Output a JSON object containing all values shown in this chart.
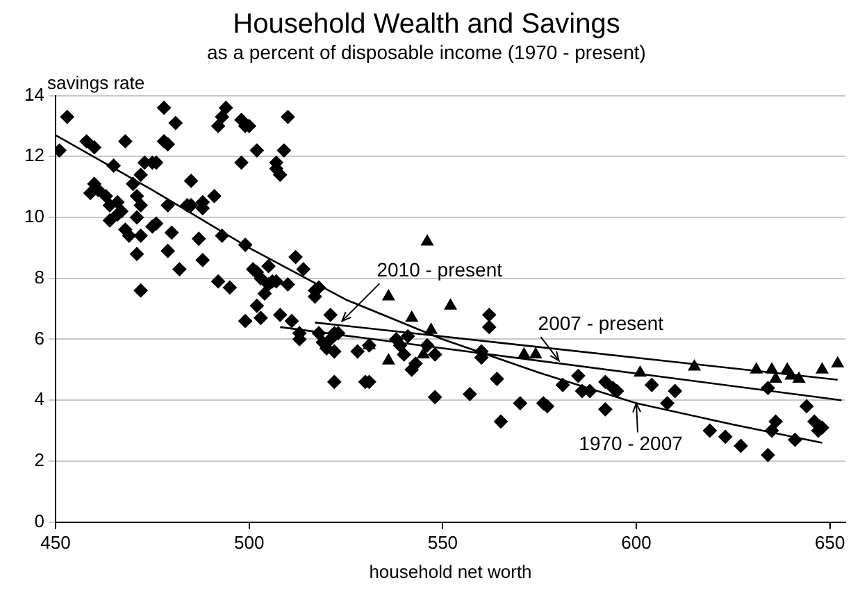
{
  "chart_data": {
    "type": "scatter",
    "title": "Household Wealth and Savings",
    "subtitle": "as a percent of disposable income (1970 - present)",
    "xlabel": "household net worth",
    "ylabel": "savings rate",
    "xlim": [
      450,
      654
    ],
    "xticks": [
      450,
      500,
      550,
      600,
      650
    ],
    "ylim": [
      0,
      14
    ],
    "yticks": [
      0,
      2,
      4,
      6,
      8,
      10,
      12,
      14
    ],
    "grid": "y",
    "legend": false,
    "series": [
      {
        "marker": "diamond",
        "color": "#000000",
        "x": [
          451,
          453,
          458,
          460,
          459,
          460,
          461,
          463,
          464,
          466,
          464,
          466,
          467,
          468,
          465,
          468,
          469,
          471,
          471,
          472,
          472,
          472,
          471,
          470,
          472,
          473,
          475,
          476,
          478,
          478,
          479,
          481,
          475,
          476,
          479,
          480,
          479,
          482,
          484,
          485,
          485,
          488,
          488,
          491,
          487,
          488,
          492,
          493,
          492,
          493,
          494,
          495,
          498,
          499,
          500,
          498,
          502,
          499,
          501,
          502,
          502,
          503,
          505,
          506,
          505,
          507,
          507,
          508,
          510,
          509,
          512,
          514,
          517,
          504,
          503,
          508,
          499,
          518,
          517,
          521,
          507,
          510,
          511,
          513,
          513,
          518,
          519,
          521,
          522,
          523,
          520,
          522,
          522,
          528,
          531,
          530,
          531,
          538,
          539,
          540,
          542,
          543,
          541,
          546,
          548,
          548,
          557,
          560,
          560,
          562,
          562,
          564,
          565,
          570,
          576,
          577,
          581,
          585,
          586,
          588,
          592,
          592,
          594,
          595,
          604,
          610,
          608,
          619,
          623,
          627,
          634,
          635,
          636,
          641,
          644,
          646,
          647,
          648,
          634
        ],
        "values": [
          12.2,
          13.3,
          12.5,
          12.3,
          10.8,
          11.1,
          10.9,
          10.7,
          10.4,
          10.5,
          9.9,
          10.1,
          10.2,
          12.5,
          11.7,
          9.6,
          9.4,
          10.0,
          8.8,
          7.6,
          9.4,
          10.4,
          10.7,
          11.1,
          11.4,
          11.8,
          11.8,
          11.8,
          13.6,
          12.5,
          12.4,
          13.1,
          9.7,
          9.8,
          10.4,
          9.5,
          8.9,
          8.3,
          10.4,
          10.4,
          11.2,
          10.5,
          10.3,
          10.7,
          9.3,
          8.6,
          7.9,
          9.4,
          13.0,
          13.3,
          13.6,
          7.7,
          13.2,
          13.0,
          13.0,
          11.8,
          12.2,
          9.1,
          8.3,
          8.2,
          7.1,
          8.0,
          8.4,
          7.9,
          7.8,
          11.8,
          11.6,
          11.4,
          13.3,
          12.2,
          8.7,
          8.3,
          7.6,
          7.5,
          6.7,
          6.8,
          6.6,
          7.7,
          7.4,
          6.8,
          7.9,
          7.8,
          6.6,
          6.2,
          6.0,
          6.2,
          5.9,
          6.0,
          6.2,
          6.2,
          5.7,
          5.6,
          4.6,
          5.6,
          5.8,
          4.6,
          4.6,
          6.0,
          5.8,
          5.5,
          5.0,
          5.2,
          6.1,
          5.8,
          5.5,
          4.1,
          4.2,
          5.4,
          5.6,
          6.8,
          6.4,
          4.7,
          3.3,
          3.9,
          3.9,
          3.8,
          4.5,
          4.8,
          4.3,
          4.3,
          3.7,
          4.6,
          4.4,
          4.3,
          4.5,
          4.3,
          3.9,
          3.0,
          2.8,
          2.5,
          2.2,
          3.0,
          3.3,
          2.7,
          3.8,
          3.3,
          3.0,
          3.1,
          4.4
        ]
      },
      {
        "marker": "triangle",
        "color": "#000000",
        "x": [
          546,
          536,
          552,
          531,
          536,
          542,
          545,
          547,
          571,
          574,
          601,
          615,
          631,
          635,
          636,
          639,
          640,
          642,
          648,
          652
        ],
        "values": [
          9.2,
          7.4,
          7.1,
          5.8,
          5.3,
          6.7,
          5.5,
          6.3,
          5.5,
          5.5,
          4.9,
          5.1,
          5.0,
          5.0,
          4.7,
          5.0,
          4.8,
          4.7,
          5.0,
          5.2
        ]
      },
      {
        "type": "line",
        "marker": "none",
        "color": "#000000",
        "x": [
          450,
          475,
          500,
          525,
          550,
          575,
          600,
          625,
          648
        ],
        "values": [
          12.7,
          10.9,
          9.0,
          7.3,
          6.0,
          4.9,
          3.9,
          3.2,
          2.6
        ]
      },
      {
        "type": "line",
        "marker": "none",
        "color": "#000000",
        "x": [
          517,
          652
        ],
        "values": [
          6.55,
          4.67
        ]
      },
      {
        "type": "line",
        "marker": "none",
        "color": "#000000",
        "x": [
          508,
          653
        ],
        "values": [
          6.4,
          4.0
        ]
      }
    ],
    "annotations": [
      {
        "text": "2010 - present",
        "x": 524,
        "y": 6.6
      },
      {
        "text": "2007 - present",
        "x": 580,
        "y": 5.3
      },
      {
        "text": "1970 - 2007",
        "x": 600,
        "y": 3.9
      }
    ]
  }
}
